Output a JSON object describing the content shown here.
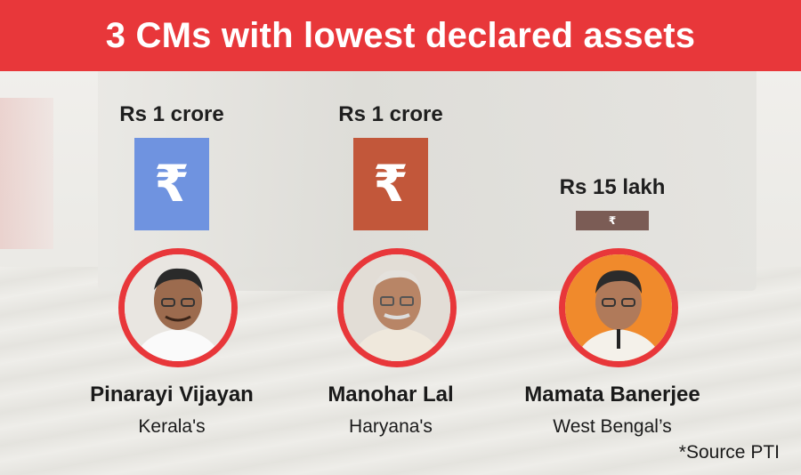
{
  "title": "3 CMs with lowest declared assets",
  "source_note": "*Source PTI",
  "currency_symbol": "₹",
  "colors": {
    "header": "#e8373a",
    "portrait_ring": "#e8373a",
    "bar_kerala": "#6f93e0",
    "bar_haryana": "#c2573a",
    "bar_west_bengal": "#7b5c55"
  },
  "chart_data": {
    "type": "bar",
    "title": "3 CMs with lowest declared assets",
    "unit": "Rs lakh",
    "categories": [
      "Pinarayi Vijayan",
      "Manohar Lal",
      "Mamata Banerjee"
    ],
    "values": [
      100,
      100,
      15
    ],
    "value_labels": [
      "Rs 1 crore",
      "Rs 1 crore",
      "Rs 15 lakh"
    ],
    "states": [
      "Kerala's",
      "Haryana's",
      "West Bengal’s"
    ]
  }
}
